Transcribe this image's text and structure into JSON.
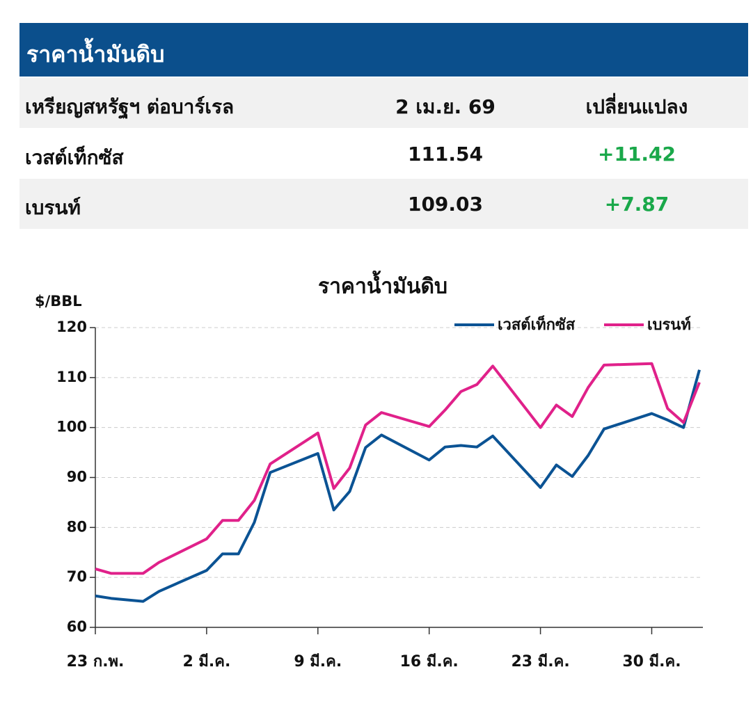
{
  "table": {
    "title": "ราคาน้ำมันดิบ",
    "columns": [
      "เหรียญสหรัฐฯ ต่อบาร์เรล",
      "2 เม.ย. 69",
      "เปลี่ยนแปลง"
    ],
    "rows": [
      [
        "เวสต์เท็กซัส",
        "111.54",
        "+11.42"
      ],
      [
        "เบรนท์",
        "109.03",
        "+7.87"
      ]
    ]
  },
  "chart_data": {
    "type": "line",
    "title": "ราคาน้ำมันดิบ",
    "y_label": "$/BBL",
    "x": [
      0,
      1,
      2,
      3,
      4,
      7,
      8,
      9,
      10,
      11,
      14,
      15,
      16,
      17,
      18,
      21,
      22,
      23,
      24,
      25,
      28,
      29,
      30,
      31,
      32,
      35,
      36,
      37,
      38
    ],
    "xlim": [
      0,
      38
    ],
    "xticks": [
      {
        "value": 0,
        "label": "23 ก.พ."
      },
      {
        "value": 7,
        "label": "2 มี.ค."
      },
      {
        "value": 14,
        "label": "9 มี.ค."
      },
      {
        "value": 21,
        "label": "16 มี.ค."
      },
      {
        "value": 28,
        "label": "23 มี.ค."
      },
      {
        "value": 35,
        "label": "30 มี.ค."
      }
    ],
    "ylim": [
      60,
      120
    ],
    "yticks": [
      60,
      70,
      80,
      90,
      100,
      110,
      120
    ],
    "grid": true,
    "legend": "top-right",
    "series": [
      {
        "name": "เวสต์เท็กซัส",
        "color": "#0b5394",
        "values": [
          66.3,
          65.8,
          65.5,
          65.2,
          67.2,
          71.4,
          74.7,
          74.7,
          81,
          91,
          94.8,
          83.5,
          87.2,
          96,
          98.5,
          93.5,
          96.1,
          96.4,
          96.1,
          98.3,
          88,
          92.5,
          90.2,
          94.4,
          99.7,
          102.8,
          101.5,
          100,
          111.54
        ]
      },
      {
        "name": "เบรนท์",
        "color": "#e0218a",
        "values": [
          71.7,
          70.8,
          70.8,
          70.8,
          73,
          77.7,
          81.4,
          81.4,
          85.4,
          92.7,
          98.9,
          87.8,
          91.9,
          100.5,
          103,
          100.2,
          103.5,
          107.2,
          108.6,
          112.3,
          100,
          104.5,
          102.2,
          108,
          112.5,
          112.8,
          103.8,
          101,
          109.03
        ]
      }
    ]
  }
}
